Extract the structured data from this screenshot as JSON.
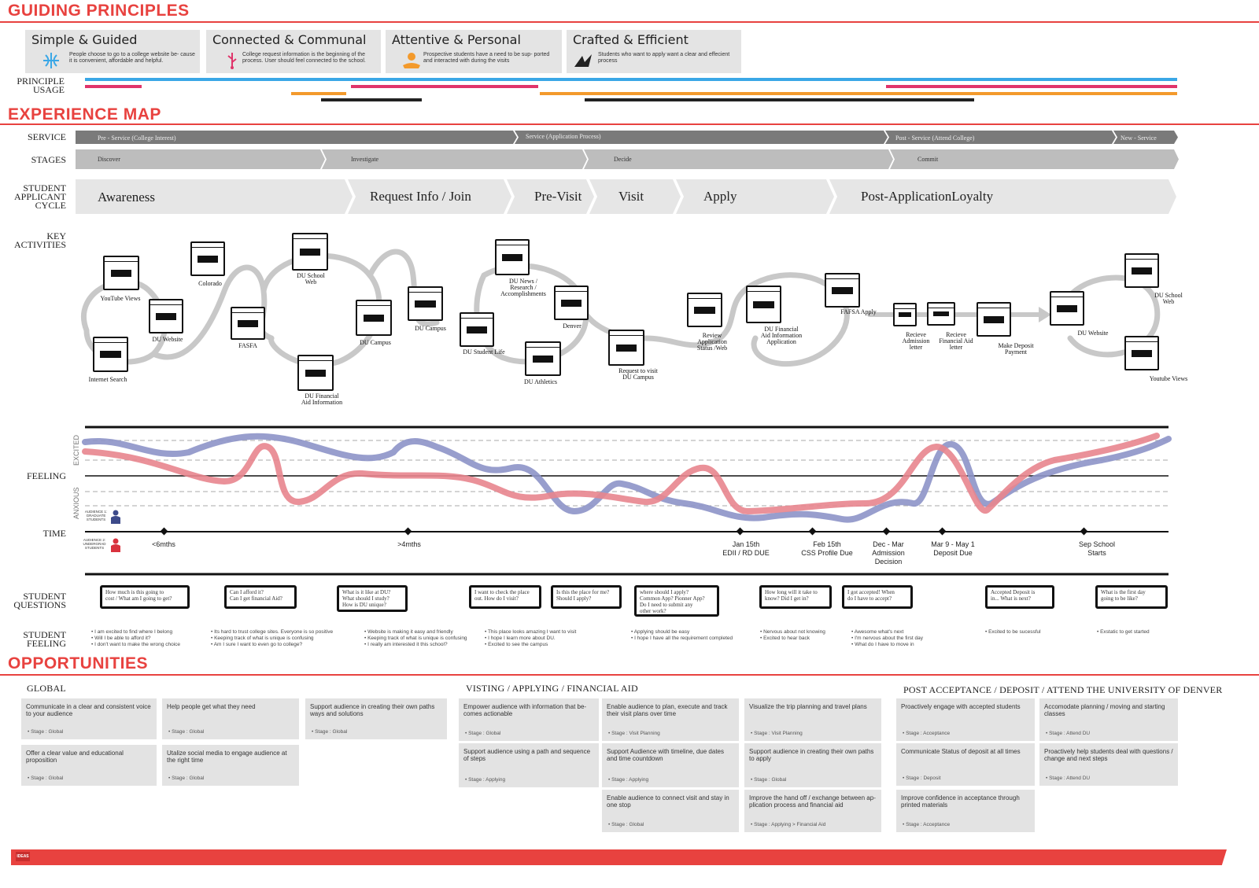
{
  "sections": {
    "guiding": "GUIDING PRINCIPLES",
    "experience": "EXPERIENCE MAP",
    "opportunities": "OPPORTUNITIES"
  },
  "principles": [
    {
      "title": "Simple & Guided",
      "text": "People choose to go to a college website be-\ncause it is convenient, affordable and helpful.",
      "icon": "compass-icon",
      "color": "#3aa7e6"
    },
    {
      "title": "Connected & Communal",
      "text": "College request information is the beginning\nof the process. User should feel connected to\nthe school.",
      "icon": "usb-plug-icon",
      "color": "#e0346a"
    },
    {
      "title": "Attentive & Personal",
      "text": "Prospective students have a need to be sup-\nported and interacted with during the visits",
      "icon": "hand-person-icon",
      "color": "#f39a2c"
    },
    {
      "title": "Crafted & Efficient",
      "text": "Students who want to apply want a clear and\neffecient process",
      "icon": "origami-crane-icon",
      "color": "#222222"
    }
  ],
  "labels": {
    "principle_usage": "PRINCIPLE\nUSAGE",
    "service": "SERVICE",
    "stages": "STAGES",
    "cycle": "STUDENT\nAPPLICANT\nCYCLE",
    "key_activities": "KEY\nACTIVITIES",
    "feeling": "FEELING",
    "time": "TIME",
    "student_questions": "STUDENT\nQUESTIONS",
    "student_feeling": "STUDENT\nFEELING",
    "excited": "EXCITED",
    "anxious": "ANXIOUS",
    "audience1": "AUDIENCE 1:\nGRADUATE\nSTUDENTS",
    "audience2": "AUDIENCE 2:\nUNDERGRAD\nSTUDENTS"
  },
  "service": [
    "Pre - Service (College Interest)",
    "Service (Application Process)",
    "Post - Service (Attend College)",
    "New - Service"
  ],
  "stages": [
    "Discover",
    "Investigate",
    "Decide",
    "Commit"
  ],
  "cycle": [
    "Awareness",
    "Request Info / Join",
    "Pre-Visit",
    "Visit",
    "Apply",
    "Post-ApplicationLoyalty"
  ],
  "activities": [
    "YouTube Views",
    "Internet Search",
    "DU Website",
    "Colorado",
    "FASFA",
    "DU School\nWeb",
    "DU Financial\nAid Information",
    "DU Campus",
    "DU Campus",
    "DU Student Life",
    "DU News /\nResearch /\nAccomplishments",
    "Denver",
    "DU Athletics",
    "Request to visit\nDU Campus",
    "Review\nApplication\nStatus /Web",
    "DU Financial\nAid Information\nApplication",
    "FAFSA Apply",
    "Recieve\nAdmission\nletter",
    "Recieve\nFinancial Aid\nletter",
    "Make Deposit\nPayment",
    "DU Website",
    "DU School\nWeb",
    "Youtube Views"
  ],
  "time_marks": [
    "<6mths",
    ">4mths",
    "Jan 15th\nEDII / RD DUE",
    "Feb 15th\nCSS Profile Due",
    "Dec - Mar\nAdmission\nDecision",
    "Mar 9 - May 1\nDeposit Due",
    "Sep School\nStarts"
  ],
  "questions": [
    "How much is this going to\ncost / What am I going to get?",
    "Can I afford it?\nCan I get financial Aid?",
    "What is it like at DU?\nWhat should I study?\nHow is DU unique?",
    "I want to check the place\nout. How do I visit?",
    "Is this the place for me?\nShould I apply?",
    "where should I apply?\nCommon App? Pionner App?\nDo I need to submit any\nother work?",
    "How long will it take to\nknow?  Did I get in?",
    "I got accepted! When\ndo I have to accept?",
    "Accepted Deposit is\nin... What is next?",
    "What is the first day\ngoing to be like?"
  ],
  "feelings": [
    "• I am excited to find where I belong\n• Will I be able to afford it?\n• I don't want to make the wrong choice",
    "• Its hard to trust college sites. Everyone is so positive\n• Keeping track of what is unique is confusing\n• Am I sure I want to even go to college?",
    "• Website is making it easy and friendly\n• Keeping track of what is unique is confusing\n• I really am interested it this school?",
    "• This place looks amazing I want to visit\n• I hope I learn more about DU.\n• Excited to see the campus",
    "• Applying should be easy\n• I hope I have all the requirement completed",
    "• Nervous about not knowing\n• Excited to hear back",
    "• Awesome what's next\n• I'm nervous about the first day\n• What do I have to move in",
    "• Excited to be sucessful",
    "• Exstatic to get started"
  ],
  "opportunities": {
    "global_head": "GLOBAL",
    "visit_head": "VISTING / APPLYING / FINANCIAL AID",
    "post_head": "POST ACCEPTANCE / DEPOSIT / ATTEND THE UNIVERSITY OF DENVER",
    "cards": [
      {
        "t": "Communicate in a clear and consistent voice to your audience",
        "s": "• Stage : Global"
      },
      {
        "t": "Help people get what they need",
        "s": "• Stage : Global"
      },
      {
        "t": "Support audience in creating their own paths ways and solutions",
        "s": "• Stage : Global"
      },
      {
        "t": "Offer a clear value and educational proposition",
        "s": "• Stage : Global"
      },
      {
        "t": "Utalize social media to engage audience at the right time",
        "s": "• Stage : Global"
      },
      {
        "t": "Empower audience with information that be-comes actionable",
        "s": "• Stage : Global"
      },
      {
        "t": "Enable audience to plan, execute and track their visit plans over time",
        "s": "• Stage : Visit Planning"
      },
      {
        "t": "Visualize the trip planning and travel plans",
        "s": "• Stage : Visit Planning"
      },
      {
        "t": "Support audience using a path and sequence of steps",
        "s": "• Stage : Applying"
      },
      {
        "t": "Support Audience with timeline, due dates and time countdown",
        "s": "• Stage : Applying"
      },
      {
        "t": "Support audience in creating their own paths to apply",
        "s": "• Stage : Global"
      },
      {
        "t": "Enable audience to connect visit and stay in one stop",
        "s": "• Stage : Global"
      },
      {
        "t": "Improve the hand off / exchange between ap-plication process and financial aid",
        "s": "• Stage : Applying > Financial Aid"
      },
      {
        "t": "Proactively engage with accepted students",
        "s": "• Stage : Acceptance"
      },
      {
        "t": "Accomodate planning / moving and starting classes",
        "s": "• Stage : Attend DU"
      },
      {
        "t": "Communicate Status of deposit at all times",
        "s": "• Stage : Deposit"
      },
      {
        "t": "Proactively help students deal with questions / change and next steps",
        "s": "• Stage : Attend DU"
      },
      {
        "t": "Improve confidence in acceptance through printed materials",
        "s": "• Stage : Acceptance"
      }
    ]
  },
  "footer_logo": "IDEAS",
  "colors": {
    "accent": "#e8423f",
    "graduate": "#8d94c8",
    "undergrad": "#e8858e",
    "chevron_dark": "#7a7a7a",
    "chevron_light": "#e6e6e6"
  }
}
